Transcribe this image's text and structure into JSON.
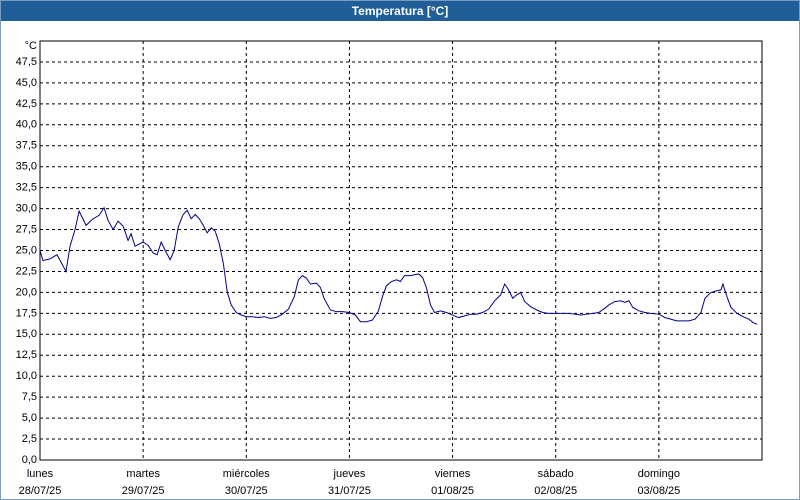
{
  "chart_data": {
    "type": "line",
    "title": "Temperatura [°C]",
    "y_unit": "°C",
    "color": "#00008b",
    "grid": true,
    "xlim": [
      0,
      7
    ],
    "ylim": [
      0,
      50
    ],
    "xticks": [
      {
        "value": 0,
        "label": "lunes",
        "date": "28/07/25"
      },
      {
        "value": 1,
        "label": "martes",
        "date": "29/07/25"
      },
      {
        "value": 2,
        "label": "miércoles",
        "date": "30/07/25"
      },
      {
        "value": 3,
        "label": "jueves",
        "date": "31/07/25"
      },
      {
        "value": 4,
        "label": "viernes",
        "date": "01/08/25"
      },
      {
        "value": 5,
        "label": "sábado",
        "date": "02/08/25"
      },
      {
        "value": 6,
        "label": "domingo",
        "date": "03/08/25"
      }
    ],
    "yticks": [
      {
        "value": 0,
        "label": "0,0"
      },
      {
        "value": 2.5,
        "label": "2,5"
      },
      {
        "value": 5,
        "label": "5,0"
      },
      {
        "value": 7.5,
        "label": "7,5"
      },
      {
        "value": 10,
        "label": "10,0"
      },
      {
        "value": 12.5,
        "label": "12,5"
      },
      {
        "value": 15,
        "label": "15,0"
      },
      {
        "value": 17.5,
        "label": "17,5"
      },
      {
        "value": 20,
        "label": "20,0"
      },
      {
        "value": 22.5,
        "label": "22,5"
      },
      {
        "value": 25,
        "label": "25,0"
      },
      {
        "value": 27.5,
        "label": "27,5"
      },
      {
        "value": 30,
        "label": "30,0"
      },
      {
        "value": 32.5,
        "label": "32,5"
      },
      {
        "value": 35,
        "label": "35,0"
      },
      {
        "value": 37.5,
        "label": "37,5"
      },
      {
        "value": 40,
        "label": "40,0"
      },
      {
        "value": 42.5,
        "label": "42,5"
      },
      {
        "value": 45,
        "label": "45,0"
      },
      {
        "value": 47.5,
        "label": "47,5"
      }
    ],
    "x": [
      0,
      0.029,
      0.097,
      0.165,
      0.252,
      0.291,
      0.34,
      0.379,
      0.447,
      0.505,
      0.573,
      0.621,
      0.66,
      0.709,
      0.757,
      0.806,
      0.854,
      0.883,
      0.922,
      1,
      1.049,
      1.097,
      1.136,
      1.175,
      1.214,
      1.262,
      1.301,
      1.34,
      1.388,
      1.427,
      1.466,
      1.505,
      1.544,
      1.583,
      1.621,
      1.66,
      1.699,
      1.738,
      1.777,
      1.816,
      1.854,
      1.903,
      1.951,
      2,
      2.058,
      2.117,
      2.175,
      2.233,
      2.291,
      2.35,
      2.408,
      2.466,
      2.505,
      2.544,
      2.583,
      2.621,
      2.68,
      2.718,
      2.757,
      2.816,
      2.874,
      2.932,
      3,
      3.058,
      3.107,
      3.165,
      3.223,
      3.282,
      3.32,
      3.359,
      3.408,
      3.456,
      3.495,
      3.534,
      3.592,
      3.631,
      3.67,
      3.709,
      3.748,
      3.786,
      3.825,
      3.883,
      3.942,
      4,
      4.058,
      4.117,
      4.175,
      4.233,
      4.291,
      4.35,
      4.408,
      4.466,
      4.505,
      4.544,
      4.583,
      4.621,
      4.66,
      4.699,
      4.757,
      4.816,
      4.874,
      4.932,
      5,
      5.068,
      5.126,
      5.184,
      5.243,
      5.301,
      5.359,
      5.417,
      5.476,
      5.515,
      5.573,
      5.631,
      5.67,
      5.709,
      5.748,
      5.806,
      5.864,
      5.922,
      6,
      6.058,
      6.117,
      6.175,
      6.233,
      6.291,
      6.35,
      6.408,
      6.447,
      6.505,
      6.563,
      6.602,
      6.621,
      6.66,
      6.699,
      6.757,
      6.816,
      6.874,
      6.913,
      6.951
    ],
    "values": [
      25,
      23.8,
      24,
      24.5,
      22.5,
      25.5,
      27.5,
      29.7,
      28,
      28.7,
      29.2,
      30.1,
      28.6,
      27.5,
      28.5,
      27.9,
      26.2,
      27,
      25.5,
      26,
      25.6,
      24.7,
      24.5,
      26,
      25,
      23.9,
      25,
      27.8,
      29.3,
      29.8,
      28.8,
      29.3,
      28.8,
      28,
      27.1,
      27.7,
      27.3,
      25.8,
      23.5,
      20,
      18.5,
      17.6,
      17.3,
      17.1,
      17.1,
      17,
      17.1,
      16.9,
      17,
      17.4,
      18,
      19.5,
      21.5,
      22,
      21.7,
      21,
      21.1,
      20.6,
      19.2,
      17.9,
      17.7,
      17.7,
      17.6,
      17.3,
      16.5,
      16.5,
      16.7,
      17.8,
      19.5,
      20.8,
      21.3,
      21.5,
      21.3,
      22,
      22,
      22.1,
      22.2,
      21.8,
      20.5,
      18.5,
      17.6,
      17.8,
      17.6,
      17.3,
      17,
      17.2,
      17.4,
      17.4,
      17.6,
      18,
      19,
      19.7,
      21,
      20.3,
      19.3,
      19.7,
      20,
      18.9,
      18.3,
      17.9,
      17.6,
      17.5,
      17.5,
      17.5,
      17.5,
      17.4,
      17.3,
      17.4,
      17.5,
      17.6,
      18.1,
      18.5,
      18.9,
      19,
      18.8,
      19,
      18.2,
      17.8,
      17.6,
      17.5,
      17.4,
      17,
      16.8,
      16.6,
      16.6,
      16.6,
      16.8,
      17.6,
      19.3,
      20,
      20.2,
      20.3,
      21,
      19.5,
      18.2,
      17.5,
      17.1,
      16.8,
      16.4,
      16.2
    ]
  }
}
